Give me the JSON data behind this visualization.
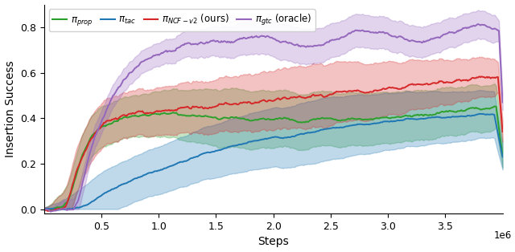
{
  "xlabel": "Steps",
  "ylabel": "Insertion Success",
  "xlim": [
    0,
    4000000
  ],
  "ylim": [
    -0.02,
    0.9
  ],
  "xticks": [
    500000,
    1000000,
    1500000,
    2000000,
    2500000,
    3000000,
    3500000
  ],
  "xtick_labels": [
    "0.5",
    "1.0",
    "1.5",
    "2.0",
    "2.5",
    "3.0",
    "3.5"
  ],
  "xscale_label": "1e6",
  "yticks": [
    0.0,
    0.2,
    0.4,
    0.6,
    0.8
  ],
  "colors": {
    "prop": "#2ca02c",
    "tac": "#1f77b4",
    "ncf": "#d62728",
    "gtc": "#9467bd"
  },
  "figsize": [
    6.4,
    3.14
  ],
  "dpi": 100
}
